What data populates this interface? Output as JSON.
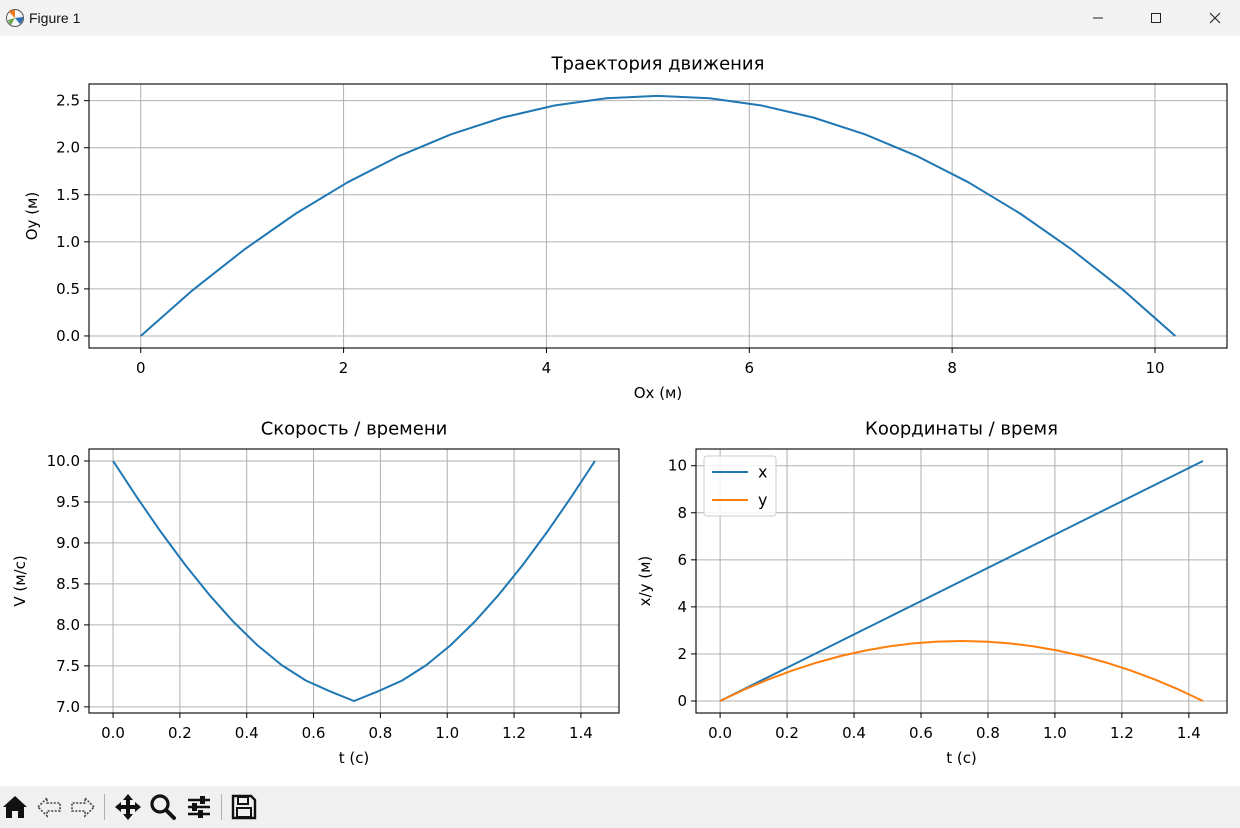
{
  "window": {
    "title": "Figure 1"
  },
  "toolbar": {
    "buttons": [
      {
        "icon": "home-icon"
      },
      {
        "icon": "back-icon"
      },
      {
        "icon": "forward-icon"
      },
      {
        "icon": "pan-icon"
      },
      {
        "icon": "zoom-icon"
      },
      {
        "icon": "configure-subplots-icon"
      },
      {
        "icon": "save-icon"
      }
    ]
  },
  "colors": {
    "blue": "#1f77b4",
    "orange": "#ff7f0e",
    "grid": "#b0b0b0"
  },
  "chart_data": [
    {
      "type": "line",
      "title": "Траектория движения",
      "xlabel": "Ox (м)",
      "ylabel": "Oy (м)",
      "xlim": [
        -0.51,
        10.71
      ],
      "ylim": [
        -0.128,
        2.677
      ],
      "xticks": [
        0,
        2,
        4,
        6,
        8,
        10
      ],
      "xtick_labels": [
        "0",
        "2",
        "4",
        "6",
        "8",
        "10"
      ],
      "yticks": [
        0,
        0.5,
        1.0,
        1.5,
        2.0,
        2.5
      ],
      "ytick_labels": [
        "0.0",
        "0.5",
        "1.0",
        "1.5",
        "2.0",
        "2.5"
      ],
      "grid": true,
      "series": [
        {
          "color": "#1f77b4",
          "x": [
            0,
            0.51,
            1.02,
            1.53,
            2.04,
            2.55,
            3.06,
            3.57,
            4.08,
            4.59,
            5.1,
            5.61,
            6.12,
            6.63,
            7.14,
            7.65,
            8.16,
            8.67,
            9.18,
            9.69,
            10.2
          ],
          "y": [
            0,
            0.485,
            0.918,
            1.301,
            1.633,
            1.913,
            2.143,
            2.321,
            2.449,
            2.526,
            2.551,
            2.526,
            2.449,
            2.321,
            2.143,
            1.913,
            1.633,
            1.301,
            0.918,
            0.485,
            0
          ]
        }
      ]
    },
    {
      "type": "line",
      "title": "Скорость / времени",
      "xlabel": "t (c)",
      "ylabel": "V (м/с)",
      "xlim": [
        -0.072,
        1.514
      ],
      "ylim": [
        6.925,
        10.146
      ],
      "xticks": [
        0,
        0.2,
        0.4,
        0.6,
        0.8,
        1.0,
        1.2,
        1.4
      ],
      "xtick_labels": [
        "0.0",
        "0.2",
        "0.4",
        "0.6",
        "0.8",
        "1.0",
        "1.2",
        "1.4"
      ],
      "yticks": [
        7.0,
        7.5,
        8.0,
        8.5,
        9.0,
        9.5,
        10.0
      ],
      "ytick_labels": [
        "7.0",
        "7.5",
        "8.0",
        "8.5",
        "9.0",
        "9.5",
        "10.0"
      ],
      "grid": true,
      "series": [
        {
          "color": "#1f77b4",
          "x": [
            0,
            0.0721,
            0.1442,
            0.2163,
            0.2884,
            0.3605,
            0.4326,
            0.5047,
            0.5768,
            0.6489,
            0.721,
            0.7931,
            0.8652,
            0.9373,
            1.0094,
            1.0815,
            1.1536,
            1.2257,
            1.2978,
            1.3699,
            1.442
          ],
          "y": [
            10.0,
            9.552,
            9.128,
            8.731,
            8.366,
            8.037,
            7.75,
            7.51,
            7.322,
            7.19,
            7.071,
            7.19,
            7.322,
            7.51,
            7.75,
            8.037,
            8.366,
            8.731,
            9.128,
            9.552,
            10.0
          ]
        }
      ]
    },
    {
      "type": "line",
      "title": "Координаты / время",
      "xlabel": "t (c)",
      "ylabel": "x/y (м)",
      "xlim": [
        -0.072,
        1.514
      ],
      "ylim": [
        -0.51,
        10.71
      ],
      "xticks": [
        0,
        0.2,
        0.4,
        0.6,
        0.8,
        1.0,
        1.2,
        1.4
      ],
      "xtick_labels": [
        "0.0",
        "0.2",
        "0.4",
        "0.6",
        "0.8",
        "1.0",
        "1.2",
        "1.4"
      ],
      "yticks": [
        0,
        2,
        4,
        6,
        8,
        10
      ],
      "ytick_labels": [
        "0",
        "2",
        "4",
        "6",
        "8",
        "10"
      ],
      "grid": true,
      "legend": "upper-left",
      "series": [
        {
          "name": "x",
          "color": "#1f77b4",
          "x": [
            0,
            0.0721,
            0.1442,
            0.2163,
            0.2884,
            0.3605,
            0.4326,
            0.5047,
            0.5768,
            0.6489,
            0.721,
            0.7931,
            0.8652,
            0.9373,
            1.0094,
            1.0815,
            1.1536,
            1.2257,
            1.2978,
            1.3699,
            1.442
          ],
          "y": [
            0,
            0.51,
            1.02,
            1.53,
            2.04,
            2.55,
            3.06,
            3.57,
            4.08,
            4.59,
            5.1,
            5.61,
            6.12,
            6.63,
            7.14,
            7.65,
            8.16,
            8.67,
            9.18,
            9.69,
            10.2
          ]
        },
        {
          "name": "y",
          "color": "#ff7f0e",
          "x": [
            0,
            0.0721,
            0.1442,
            0.2163,
            0.2884,
            0.3605,
            0.4326,
            0.5047,
            0.5768,
            0.6489,
            0.721,
            0.7931,
            0.8652,
            0.9373,
            1.0094,
            1.0815,
            1.1536,
            1.2257,
            1.2978,
            1.3699,
            1.442
          ],
          "y": [
            0,
            0.485,
            0.918,
            1.301,
            1.633,
            1.913,
            2.143,
            2.321,
            2.449,
            2.526,
            2.551,
            2.526,
            2.449,
            2.321,
            2.143,
            1.913,
            1.633,
            1.301,
            0.918,
            0.485,
            0
          ]
        }
      ]
    }
  ]
}
